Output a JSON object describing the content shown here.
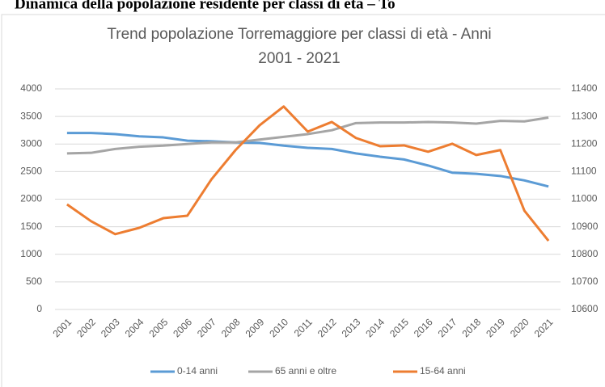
{
  "heading": "Dinamica della popolazione residente per classi di età – To",
  "chart_data": {
    "type": "line",
    "title": [
      "Trend popolazione Torremaggiore per classi  di età - Anni",
      "2001 - 2021"
    ],
    "categories": [
      "2001",
      "2002",
      "2003",
      "2004",
      "2005",
      "2006",
      "2007",
      "2008",
      "2009",
      "2010",
      "2011",
      "2012",
      "2013",
      "2014",
      "2015",
      "2016",
      "2017",
      "2018",
      "2019",
      "2020",
      "2021"
    ],
    "series": [
      {
        "name": "0-14 anni",
        "color": "#5b9bd5",
        "values": [
          3200,
          3200,
          3180,
          3140,
          3120,
          3060,
          3050,
          3030,
          3020,
          2970,
          2930,
          2910,
          2830,
          2770,
          2720,
          2610,
          2480,
          2460,
          2420,
          2340,
          2230
        ]
      },
      {
        "name": "65 anni e oltre",
        "color": "#a5a5a5",
        "values": [
          2830,
          2840,
          2910,
          2950,
          2970,
          3000,
          3030,
          3030,
          3080,
          3130,
          3180,
          3250,
          3380,
          3390,
          3390,
          3400,
          3390,
          3370,
          3420,
          3410,
          3480
        ]
      },
      {
        "name": "15-64 anni",
        "color": "#ed7d31",
        "axis": "y2",
        "values": [
          10981,
          10920,
          10873,
          10896,
          10931,
          10940,
          11072,
          11178,
          11268,
          11336,
          11245,
          11280,
          11222,
          11192,
          11195,
          11172,
          11201,
          11160,
          11178,
          10958,
          10849
        ]
      }
    ],
    "ylim": [
      0,
      4000
    ],
    "yticks": [
      0,
      500,
      1000,
      1500,
      2000,
      2500,
      3000,
      3500,
      4000
    ],
    "y2lim": [
      10600,
      11400
    ],
    "y2ticks": [
      10600,
      10700,
      10800,
      10900,
      11000,
      11100,
      11200,
      11300,
      11400
    ],
    "grid": true,
    "legend": "bottom"
  }
}
